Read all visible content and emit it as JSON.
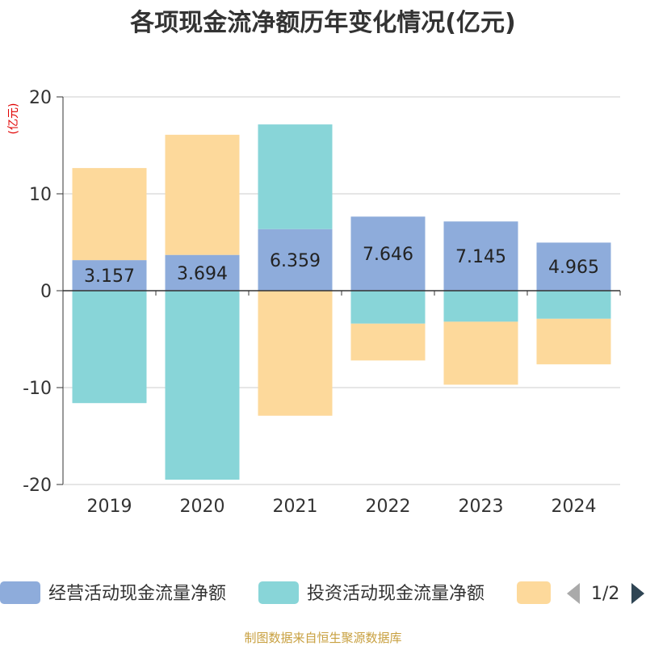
{
  "chart_data": {
    "type": "bar",
    "stacked": true,
    "title": "各项现金流净额历年变化情况(亿元)",
    "unit_label": "(亿元)",
    "categories": [
      "2019",
      "2020",
      "2021",
      "2022",
      "2023",
      "2024"
    ],
    "ylim": [
      -20,
      20
    ],
    "yticks": [
      20,
      10,
      0,
      -10,
      -20
    ],
    "grid": true,
    "series": [
      {
        "name": "经营活动现金流量净额",
        "color": "#8eacdb",
        "values": [
          3.157,
          3.694,
          6.359,
          7.646,
          7.145,
          4.965
        ],
        "show_labels": true
      },
      {
        "name": "投资活动现金流量净额",
        "color": "#88d5d8",
        "values": [
          -11.6,
          -19.5,
          10.8,
          -3.4,
          -3.2,
          -2.9
        ],
        "show_labels": false
      },
      {
        "name": "",
        "color": "#fdd99b",
        "values": [
          9.5,
          12.4,
          -12.9,
          -3.8,
          -6.5,
          -4.7
        ],
        "show_labels": false
      }
    ],
    "legend": {
      "position": "bottom",
      "page": "1/2"
    },
    "source": "制图数据来自恒生聚源数据库"
  }
}
